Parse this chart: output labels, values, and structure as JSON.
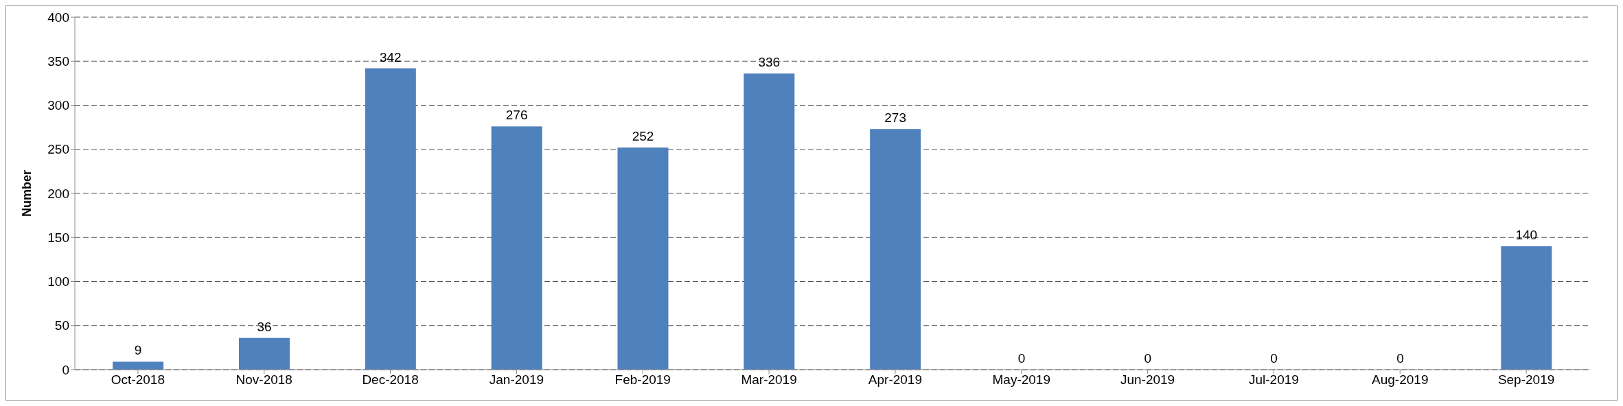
{
  "chart_data": {
    "type": "bar",
    "ylabel": "Number",
    "categories": [
      "Oct-2018",
      "Nov-2018",
      "Dec-2018",
      "Jan-2019",
      "Feb-2019",
      "Mar-2019",
      "Apr-2019",
      "May-2019",
      "Jun-2019",
      "Jul-2019",
      "Aug-2019",
      "Sep-2019"
    ],
    "values": [
      9,
      36,
      342,
      276,
      252,
      336,
      273,
      0,
      0,
      0,
      0,
      140
    ],
    "color": "#4f81bd",
    "ylim": [
      0,
      400
    ],
    "yticks": [
      0,
      50,
      100,
      150,
      200,
      250,
      300,
      350,
      400
    ],
    "grid": "y",
    "data_labels": true
  }
}
